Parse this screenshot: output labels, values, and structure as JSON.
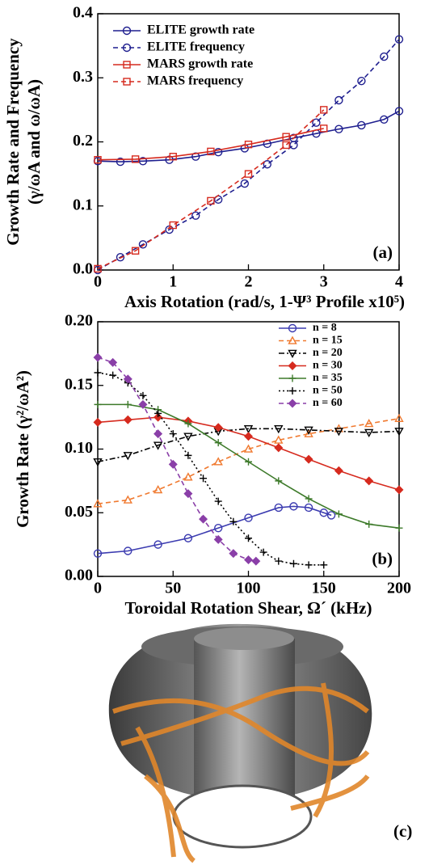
{
  "chart_data": [
    {
      "type": "line",
      "y_label": [
        "Growth Rate and Frequency",
        "(γ/ωA and ω/ωA)"
      ],
      "x_label": "Axis Rotation (rad/s, 1-Ψ³ Profile x10⁵)",
      "annotation": "(a)",
      "xlim": [
        0,
        4
      ],
      "xticks": [
        0,
        1,
        2,
        3,
        4
      ],
      "ylim": [
        0,
        0.4
      ],
      "yticks": [
        {
          "value": 0,
          "label": "0.0"
        },
        0.1,
        0.2,
        0.3,
        0.4
      ],
      "legend": "upper left",
      "series": [
        {
          "name": "ELITE growth rate",
          "color": "#1f1f8f",
          "marker": "circle",
          "dash": "solid",
          "x": [
            0,
            0.3,
            0.6,
            0.95,
            1.3,
            1.6,
            1.95,
            2.25,
            2.6,
            2.9,
            3.2,
            3.5,
            3.8,
            4.0
          ],
          "values": [
            0.17,
            0.169,
            0.17,
            0.172,
            0.177,
            0.184,
            0.19,
            0.197,
            0.206,
            0.213,
            0.22,
            0.226,
            0.235,
            0.248
          ]
        },
        {
          "name": "ELITE frequency",
          "color": "#1f1f8f",
          "marker": "circle",
          "dash": "dashed",
          "x": [
            0,
            0.3,
            0.6,
            0.95,
            1.3,
            1.6,
            1.95,
            2.25,
            2.6,
            2.9,
            3.2,
            3.5,
            3.8,
            4.0
          ],
          "values": [
            0,
            0.02,
            0.04,
            0.063,
            0.085,
            0.11,
            0.135,
            0.165,
            0.195,
            0.23,
            0.265,
            0.295,
            0.333,
            0.36
          ]
        },
        {
          "name": "MARS growth rate",
          "color": "#d62a1e",
          "marker": "square",
          "dash": "solid",
          "x": [
            0,
            0.5,
            1,
            1.5,
            2,
            2.5,
            3
          ],
          "values": [
            0.172,
            0.173,
            0.177,
            0.185,
            0.196,
            0.208,
            0.221
          ]
        },
        {
          "name": "MARS frequency",
          "color": "#d62a1e",
          "marker": "square",
          "dash": "dashed",
          "x": [
            0,
            0.5,
            1,
            1.5,
            2,
            2.5,
            3
          ],
          "values": [
            0.002,
            0.03,
            0.07,
            0.108,
            0.15,
            0.195,
            0.25
          ]
        }
      ]
    },
    {
      "type": "line",
      "y_label": [
        "Growth Rate (γ²/ωA²)"
      ],
      "x_label": "Toroidal Rotation Shear, Ω´ (kHz)",
      "annotation": "(b)",
      "xlim": [
        0,
        200
      ],
      "xticks": [
        0,
        50,
        100,
        150,
        200
      ],
      "ylim": [
        0,
        0.2
      ],
      "yticks": [
        {
          "value": 0,
          "label": "0.00"
        },
        {
          "value": 0.05,
          "label": "0.05"
        },
        {
          "value": 0.1,
          "label": "0.10"
        },
        {
          "value": 0.15,
          "label": "0.15"
        },
        {
          "value": 0.2,
          "label": "0.20"
        }
      ],
      "legend": "upper right",
      "series": [
        {
          "name": "n = 8",
          "color": "#3b3bb0",
          "marker": "circle",
          "dash": "solid",
          "x": [
            0,
            20,
            40,
            60,
            80,
            100,
            120,
            130,
            140,
            150,
            155
          ],
          "values": [
            0.018,
            0.02,
            0.025,
            0.03,
            0.038,
            0.046,
            0.054,
            0.055,
            0.054,
            0.05,
            0.048
          ]
        },
        {
          "name": "n = 15",
          "color": "#f07a30",
          "marker": "triangle",
          "dash": "dashed",
          "x": [
            0,
            20,
            40,
            60,
            80,
            100,
            120,
            140,
            160,
            180,
            200
          ],
          "values": [
            0.057,
            0.06,
            0.068,
            0.078,
            0.09,
            0.1,
            0.107,
            0.112,
            0.116,
            0.12,
            0.124
          ]
        },
        {
          "name": "n = 20",
          "color": "#000000",
          "marker": "tridown",
          "dash": "dashdot",
          "x": [
            0,
            20,
            40,
            60,
            80,
            100,
            120,
            140,
            160,
            180,
            200
          ],
          "values": [
            0.09,
            0.095,
            0.103,
            0.11,
            0.114,
            0.116,
            0.116,
            0.115,
            0.114,
            0.113,
            0.114
          ]
        },
        {
          "name": "n = 30",
          "color": "#d62a1e",
          "marker": "diamond",
          "dash": "solid",
          "x": [
            0,
            20,
            40,
            60,
            80,
            100,
            120,
            140,
            160,
            180,
            200
          ],
          "values": [
            0.121,
            0.123,
            0.125,
            0.122,
            0.117,
            0.11,
            0.101,
            0.092,
            0.083,
            0.075,
            0.068
          ]
        },
        {
          "name": "n = 35",
          "color": "#3d7a2a",
          "marker": "plus",
          "dash": "solid",
          "x": [
            0,
            20,
            40,
            60,
            80,
            100,
            120,
            140,
            160,
            180,
            200
          ],
          "values": [
            0.135,
            0.135,
            0.131,
            0.12,
            0.105,
            0.09,
            0.075,
            0.061,
            0.049,
            0.041,
            0.038
          ]
        },
        {
          "name": "n = 50",
          "color": "#000000",
          "marker": "plus",
          "dash": "dotted",
          "x": [
            0,
            10,
            20,
            30,
            40,
            50,
            60,
            70,
            80,
            90,
            100,
            110,
            120,
            130,
            140,
            150
          ],
          "values": [
            0.16,
            0.158,
            0.152,
            0.142,
            0.128,
            0.112,
            0.095,
            0.077,
            0.059,
            0.043,
            0.03,
            0.019,
            0.012,
            0.01,
            0.009,
            0.009
          ]
        },
        {
          "name": "n = 60",
          "color": "#8a3fa8",
          "marker": "diamond",
          "dash": "dashed",
          "x": [
            0,
            10,
            20,
            30,
            40,
            50,
            60,
            70,
            80,
            90,
            100,
            105
          ],
          "values": [
            0.172,
            0.168,
            0.155,
            0.135,
            0.112,
            0.088,
            0.065,
            0.045,
            0.029,
            0.018,
            0.013,
            0.012
          ]
        }
      ]
    }
  ],
  "figure_c": {
    "label": "(c)"
  }
}
